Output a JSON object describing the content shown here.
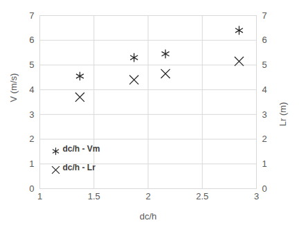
{
  "chart_data": {
    "type": "scatter",
    "x_label": "dc/h",
    "y_label": "V (m/s)",
    "y2_label": "Lr (m)",
    "xlim": [
      1,
      3
    ],
    "xticks": [
      1,
      1.5,
      2,
      2.5,
      3
    ],
    "ylim": [
      0,
      7
    ],
    "yticks": [
      0,
      1,
      2,
      3,
      4,
      5,
      6,
      7
    ],
    "y2lim": [
      0,
      7
    ],
    "y2ticks": [
      0,
      1,
      2,
      3,
      4,
      5,
      6,
      7
    ],
    "grid": true,
    "legend": "lower left",
    "series": [
      {
        "name": "dc/h - Vm",
        "color": "#262626",
        "marker": "asterisk",
        "x": [
          1.37,
          1.87,
          2.16,
          2.84
        ],
        "values": [
          4.55,
          5.3,
          5.45,
          6.4
        ]
      },
      {
        "name": "dc/h - Lr",
        "color": "#262626",
        "marker": "x",
        "axis": "y2",
        "x": [
          1.37,
          1.87,
          2.16,
          2.84
        ],
        "values": [
          3.7,
          4.4,
          4.65,
          5.15
        ]
      }
    ]
  }
}
